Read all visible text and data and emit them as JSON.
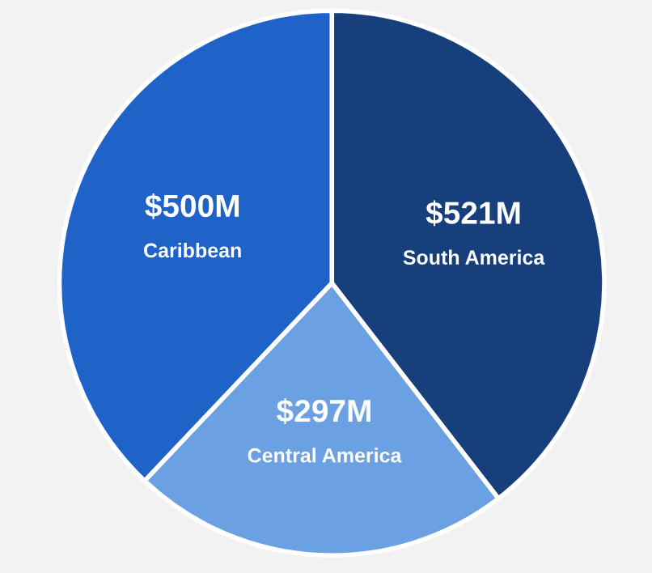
{
  "chart_data": {
    "type": "pie",
    "categories": [
      "South America",
      "Central America",
      "Caribbean"
    ],
    "values": [
      521,
      297,
      500
    ],
    "value_labels": [
      "$521M",
      "$297M",
      "$500M"
    ],
    "colors": [
      "#173f7c",
      "#6ba1e3",
      "#1f63c8"
    ]
  }
}
